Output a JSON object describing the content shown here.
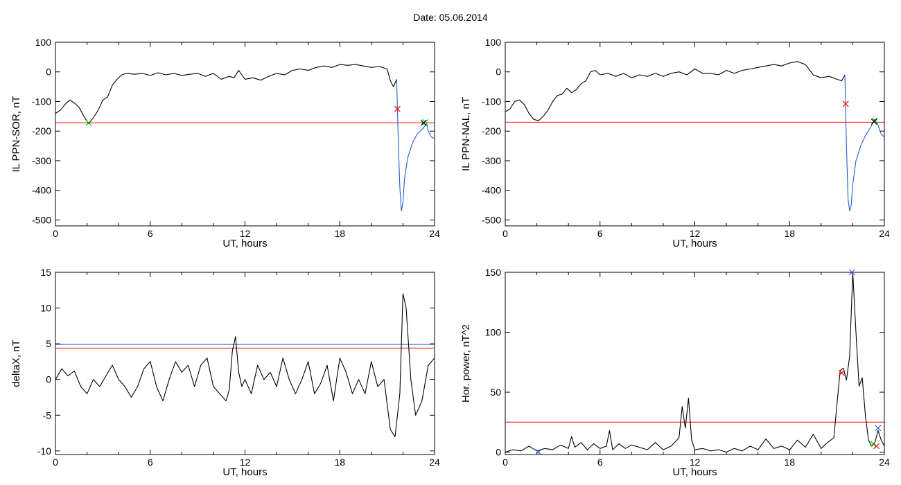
{
  "header": {
    "date_label": "Date:  05.06.2014"
  },
  "chart_data": [
    {
      "id": "ppn-sor",
      "type": "line",
      "xlabel": "UT, hours",
      "ylabel": "IL PPN-SOR, nT",
      "xlim": [
        0,
        24
      ],
      "ylim": [
        -520,
        100
      ],
      "xticks": [
        0,
        6,
        12,
        18,
        24
      ],
      "yticks": [
        100,
        0,
        -100,
        -200,
        -300,
        -400,
        -500
      ],
      "hlines": [
        {
          "y": -172,
          "color": "#ff0000"
        }
      ],
      "series": [
        {
          "color": "#000000",
          "x": [
            0,
            0.3,
            0.6,
            0.9,
            1.2,
            1.5,
            1.8,
            2.1,
            2.4,
            2.7,
            3.0,
            3.3,
            3.6,
            3.9,
            4.2,
            4.5,
            5.0,
            5.5,
            6.0,
            6.5,
            7.0,
            7.5,
            8.0,
            8.5,
            9.0,
            9.5,
            10.0,
            10.5,
            11.0,
            11.3,
            11.6,
            12.0,
            12.5,
            13.0,
            13.5,
            14.0,
            14.5,
            15.0,
            15.5,
            16.0,
            16.5,
            17.0,
            17.5,
            18.0,
            18.5,
            19.0,
            19.5,
            20.0,
            20.5,
            21.0,
            21.2,
            21.4,
            21.6
          ],
          "y": [
            -140,
            -130,
            -110,
            -95,
            -105,
            -120,
            -150,
            -175,
            -155,
            -130,
            -95,
            -85,
            -45,
            -25,
            -10,
            -5,
            -8,
            -5,
            -12,
            -3,
            -10,
            -5,
            -12,
            -8,
            -5,
            -15,
            -5,
            -25,
            -15,
            -20,
            5,
            -25,
            -20,
            -28,
            -15,
            -5,
            -10,
            5,
            10,
            5,
            15,
            20,
            15,
            25,
            22,
            25,
            20,
            15,
            18,
            10,
            -30,
            -50,
            -25
          ]
        },
        {
          "color": "#1f5fd0",
          "x": [
            21.6,
            21.7,
            21.8,
            21.9,
            22.0,
            22.1,
            22.3,
            22.6,
            22.9,
            23.2,
            23.5,
            23.6,
            23.8,
            24.0
          ],
          "y": [
            -25,
            -230,
            -390,
            -470,
            -440,
            -360,
            -290,
            -240,
            -210,
            -195,
            -175,
            -200,
            -220,
            -225
          ]
        }
      ],
      "markers": [
        {
          "x": 2.1,
          "y": -172,
          "color": "#00cc00"
        },
        {
          "x": 21.65,
          "y": -125,
          "color": "#ff0000"
        },
        {
          "x": 23.4,
          "y": -170,
          "color": "#00cc00"
        },
        {
          "x": 23.3,
          "y": -172,
          "color": "#000000"
        }
      ]
    },
    {
      "id": "ppn-nal",
      "type": "line",
      "xlabel": "UT, hours",
      "ylabel": "IL PPN-NAL, nT",
      "xlim": [
        0,
        24
      ],
      "ylim": [
        -520,
        100
      ],
      "xticks": [
        0,
        6,
        12,
        18,
        24
      ],
      "yticks": [
        100,
        0,
        -100,
        -200,
        -300,
        -400,
        -500
      ],
      "hlines": [
        {
          "y": -170,
          "color": "#ff0000"
        }
      ],
      "series": [
        {
          "color": "#000000",
          "x": [
            0,
            0.3,
            0.6,
            0.9,
            1.2,
            1.5,
            1.8,
            2.1,
            2.4,
            2.7,
            3.0,
            3.3,
            3.6,
            3.9,
            4.2,
            4.5,
            4.8,
            5.1,
            5.4,
            5.7,
            6.0,
            6.5,
            7.0,
            7.5,
            8.0,
            8.5,
            9.0,
            9.5,
            10.0,
            10.5,
            11.0,
            11.5,
            12.0,
            12.5,
            13.0,
            13.5,
            14.0,
            14.5,
            15.0,
            15.5,
            16.0,
            16.5,
            17.0,
            17.5,
            18.0,
            18.5,
            19.0,
            19.5,
            20.0,
            20.5,
            21.0,
            21.3,
            21.5
          ],
          "y": [
            -135,
            -125,
            -100,
            -95,
            -110,
            -140,
            -160,
            -165,
            -150,
            -130,
            -100,
            -80,
            -75,
            -55,
            -70,
            -60,
            -40,
            -30,
            0,
            5,
            -10,
            -5,
            -15,
            -5,
            -20,
            -10,
            -15,
            -5,
            -15,
            -5,
            0,
            -10,
            10,
            -5,
            -5,
            -10,
            5,
            -5,
            5,
            10,
            15,
            20,
            25,
            20,
            30,
            35,
            25,
            -10,
            -20,
            -15,
            -25,
            -30,
            -10
          ]
        },
        {
          "color": "#1f5fd0",
          "x": [
            21.5,
            21.6,
            21.7,
            21.8,
            21.9,
            22.0,
            22.2,
            22.5,
            22.8,
            23.1,
            23.4,
            23.6,
            23.8,
            24.0
          ],
          "y": [
            -10,
            -250,
            -430,
            -470,
            -450,
            -380,
            -300,
            -250,
            -215,
            -190,
            -160,
            -180,
            -210,
            -220
          ]
        }
      ],
      "markers": [
        {
          "x": 21.55,
          "y": -108,
          "color": "#ff0000"
        },
        {
          "x": 23.4,
          "y": -165,
          "color": "#00cc00"
        },
        {
          "x": 23.35,
          "y": -168,
          "color": "#000000"
        }
      ]
    },
    {
      "id": "deltax",
      "type": "line",
      "xlabel": "UT, hours",
      "ylabel": "deltaX, nT",
      "xlim": [
        0,
        24
      ],
      "ylim": [
        -10.5,
        15
      ],
      "xticks": [
        0,
        6,
        12,
        18,
        24
      ],
      "yticks": [
        15,
        10,
        5,
        0,
        -5,
        -10
      ],
      "hlines": [
        {
          "y": 4.9,
          "color": "#1f5fd0"
        },
        {
          "y": 4.4,
          "color": "#ff0000"
        }
      ],
      "series": [
        {
          "color": "#000000",
          "x": [
            0,
            0.4,
            0.8,
            1.2,
            1.6,
            2.0,
            2.4,
            2.8,
            3.2,
            3.6,
            4.0,
            4.4,
            4.8,
            5.2,
            5.6,
            6.0,
            6.4,
            6.8,
            7.2,
            7.6,
            8.0,
            8.4,
            8.8,
            9.2,
            9.6,
            10.0,
            10.4,
            10.8,
            11.0,
            11.2,
            11.4,
            11.6,
            11.8,
            12.0,
            12.4,
            12.8,
            13.2,
            13.6,
            14.0,
            14.4,
            14.8,
            15.2,
            15.6,
            16.0,
            16.4,
            16.8,
            17.2,
            17.6,
            18.0,
            18.4,
            18.8,
            19.2,
            19.6,
            20.0,
            20.4,
            20.8,
            21.2,
            21.5,
            21.8,
            22.0,
            22.2,
            22.5,
            22.8,
            23.2,
            23.6,
            24.0
          ],
          "y": [
            0,
            1.5,
            0.5,
            1.2,
            -1,
            -2,
            0,
            -1,
            0.5,
            2,
            0,
            -1,
            -2.5,
            -1,
            1.5,
            2.5,
            -1,
            -3,
            0,
            2.5,
            1,
            2,
            -1,
            2,
            3,
            -1,
            -2,
            -3,
            -1.5,
            4,
            6,
            1,
            -1,
            0,
            -2,
            2,
            0,
            1,
            -1,
            3,
            0,
            -2,
            0,
            2.5,
            -2,
            -0.5,
            2,
            -3,
            3,
            1,
            -2,
            0,
            -2,
            2.5,
            -1,
            0,
            -7,
            -8,
            -2,
            12,
            10,
            0,
            -5,
            -3,
            2,
            3
          ]
        }
      ],
      "markers": []
    },
    {
      "id": "hor-power",
      "type": "line",
      "xlabel": "UT, hours",
      "ylabel": "Hor. power, nT^2",
      "xlim": [
        0,
        24
      ],
      "ylim": [
        -2,
        150
      ],
      "xticks": [
        0,
        6,
        12,
        18,
        24
      ],
      "yticks": [
        150,
        100,
        50,
        0
      ],
      "hlines": [
        {
          "y": 25,
          "color": "#ff0000"
        }
      ],
      "series": [
        {
          "color": "#000000",
          "x": [
            0,
            0.5,
            1.0,
            1.5,
            2.0,
            2.5,
            3.0,
            3.5,
            4.0,
            4.2,
            4.4,
            4.8,
            5.2,
            5.6,
            6.0,
            6.4,
            6.6,
            6.8,
            7.2,
            7.6,
            8.0,
            8.5,
            9.0,
            9.5,
            10.0,
            10.5,
            11.0,
            11.2,
            11.4,
            11.6,
            11.8,
            12.0,
            12.5,
            13.0,
            13.5,
            14.0,
            14.5,
            15.0,
            15.5,
            16.0,
            16.5,
            17.0,
            17.5,
            18.0,
            18.5,
            19.0,
            19.5,
            20.0,
            20.4,
            20.8,
            21.0,
            21.2,
            21.4,
            21.6,
            21.8,
            22.0,
            22.2,
            22.4,
            22.6,
            22.8,
            23.0,
            23.2,
            23.4,
            23.6,
            23.8,
            24.0
          ],
          "y": [
            0,
            2,
            1,
            5,
            1,
            3,
            2,
            6,
            3,
            13,
            4,
            8,
            2,
            7,
            3,
            5,
            18,
            2,
            7,
            3,
            6,
            4,
            2,
            8,
            2,
            5,
            12,
            38,
            20,
            45,
            10,
            2,
            3,
            1,
            2,
            0,
            3,
            1,
            5,
            2,
            11,
            3,
            5,
            2,
            10,
            4,
            15,
            3,
            8,
            12,
            40,
            68,
            70,
            60,
            80,
            150,
            100,
            55,
            62,
            30,
            10,
            5,
            8,
            18,
            10,
            5
          ]
        }
      ],
      "markers": [
        {
          "x": 2.1,
          "y": 0,
          "color": "#1f5fd0"
        },
        {
          "x": 21.3,
          "y": 66,
          "color": "#ff0000"
        },
        {
          "x": 21.95,
          "y": 150,
          "color": "#1f5fd0"
        },
        {
          "x": 23.6,
          "y": 20,
          "color": "#1f5fd0"
        },
        {
          "x": 23.3,
          "y": 7,
          "color": "#00cc00"
        },
        {
          "x": 23.5,
          "y": 5,
          "color": "#ff0000"
        }
      ]
    }
  ]
}
